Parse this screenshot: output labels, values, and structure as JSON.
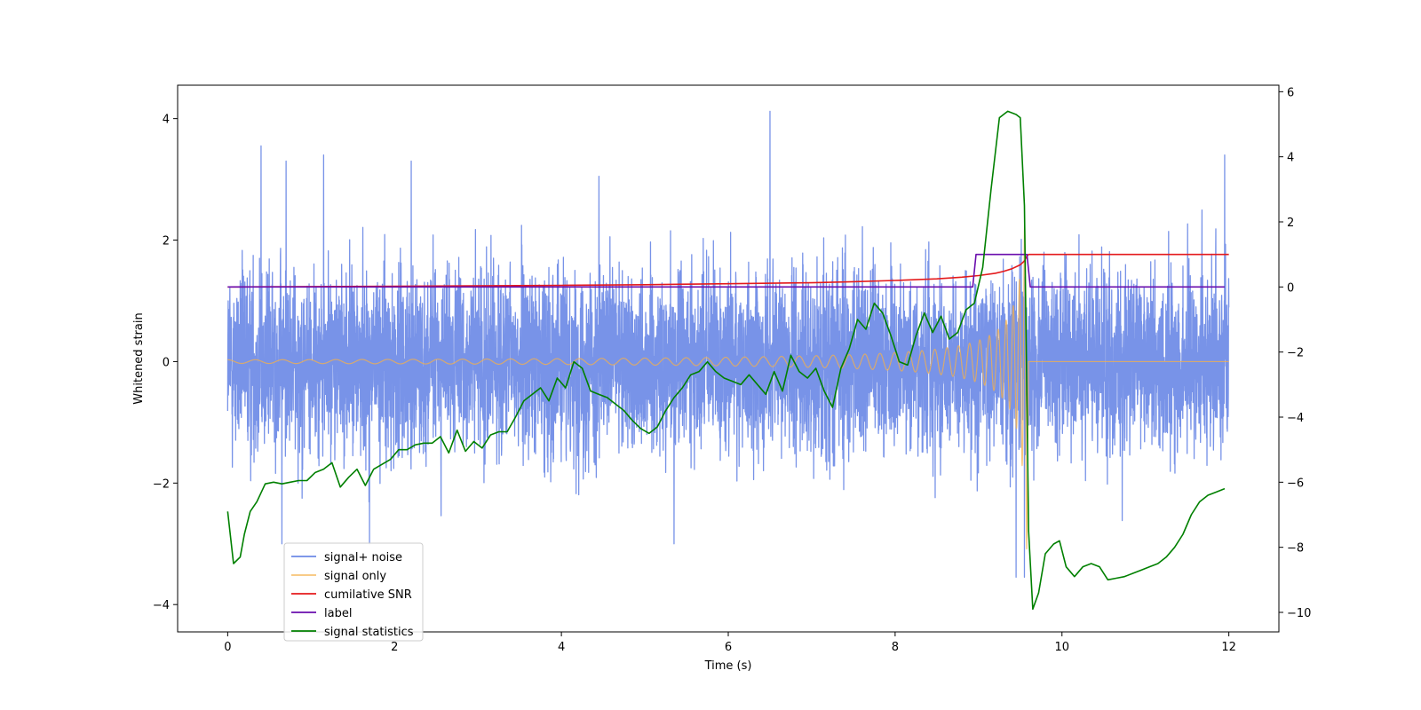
{
  "chart_data": {
    "type": "line",
    "title": "",
    "xlabel": "Time (s)",
    "ylabel": "Whitened strain",
    "y2label": "",
    "xlim": [
      -0.6,
      12.6
    ],
    "ylim": [
      -4.45,
      4.55
    ],
    "y2lim": [
      -10.6,
      6.2
    ],
    "x_ticks": [
      0,
      2,
      4,
      6,
      8,
      10,
      12
    ],
    "y_ticks": [
      -4,
      -2,
      0,
      2,
      4
    ],
    "y2_ticks": [
      -10,
      -8,
      -6,
      -4,
      -2,
      0,
      2,
      4,
      6
    ],
    "grid": false,
    "legend_position": "lower-left",
    "series": [
      {
        "name": "signal+ noise",
        "color": "#6d8ae6",
        "axis": "left",
        "description_values": {
          "x_range": [
            0,
            12
          ],
          "typical_band": [
            -2.0,
            2.0
          ],
          "spike_points": [
            {
              "x": 0.4,
              "y": 3.55
            },
            {
              "x": 0.7,
              "y": 3.3
            },
            {
              "x": 1.15,
              "y": 3.4
            },
            {
              "x": 2.2,
              "y": 3.3
            },
            {
              "x": 4.45,
              "y": 3.05
            },
            {
              "x": 6.5,
              "y": 4.12
            },
            {
              "x": 9.55,
              "y": 4.18
            },
            {
              "x": 11.95,
              "y": 3.4
            },
            {
              "x": 0.65,
              "y": -3.0
            },
            {
              "x": 1.7,
              "y": -3.0
            },
            {
              "x": 5.35,
              "y": -3.0
            },
            {
              "x": 9.45,
              "y": -3.55
            },
            {
              "x": 9.55,
              "y": -3.55
            }
          ]
        }
      },
      {
        "name": "signal only",
        "color": "#f5b04a",
        "axis": "left",
        "chirp": {
          "start_x": 0,
          "end_x": 9.58,
          "initial_amplitude": 0.03,
          "peak_amplitude": 3.1,
          "after_merger_value": 0
        }
      },
      {
        "name": "cumilative SNR",
        "color": "#e41a1c",
        "axis": "right",
        "x": [
          0,
          2,
          4,
          5,
          6,
          7,
          7.5,
          8,
          8.5,
          8.8,
          9.0,
          9.2,
          9.3,
          9.4,
          9.5,
          9.55,
          9.58,
          9.6,
          10,
          12
        ],
        "y": [
          0,
          0.02,
          0.05,
          0.07,
          0.1,
          0.13,
          0.16,
          0.2,
          0.25,
          0.3,
          0.35,
          0.42,
          0.48,
          0.56,
          0.68,
          0.8,
          0.95,
          1.0,
          1.0,
          1.0
        ]
      },
      {
        "name": "label",
        "color": "#6a0dad",
        "axis": "right",
        "x": [
          0,
          8.93,
          8.97,
          9.58,
          9.62,
          11.95
        ],
        "y": [
          0,
          0,
          1,
          1,
          0,
          0
        ]
      },
      {
        "name": "signal statistics",
        "color": "#008000",
        "axis": "right",
        "x": [
          0,
          0.07,
          0.15,
          0.2,
          0.27,
          0.35,
          0.45,
          0.55,
          0.65,
          0.75,
          0.85,
          0.95,
          1.05,
          1.15,
          1.25,
          1.35,
          1.45,
          1.55,
          1.65,
          1.75,
          1.85,
          1.95,
          2.05,
          2.15,
          2.25,
          2.35,
          2.45,
          2.55,
          2.65,
          2.75,
          2.85,
          2.95,
          3.05,
          3.15,
          3.25,
          3.35,
          3.45,
          3.55,
          3.65,
          3.75,
          3.85,
          3.95,
          4.05,
          4.15,
          4.25,
          4.35,
          4.45,
          4.55,
          4.65,
          4.75,
          4.85,
          4.95,
          5.05,
          5.15,
          5.25,
          5.35,
          5.45,
          5.55,
          5.65,
          5.75,
          5.85,
          5.95,
          6.05,
          6.15,
          6.25,
          6.35,
          6.45,
          6.55,
          6.65,
          6.75,
          6.85,
          6.95,
          7.05,
          7.15,
          7.25,
          7.35,
          7.45,
          7.55,
          7.65,
          7.75,
          7.85,
          7.95,
          8.05,
          8.15,
          8.25,
          8.35,
          8.45,
          8.55,
          8.65,
          8.75,
          8.85,
          8.95,
          9.05,
          9.15,
          9.25,
          9.35,
          9.45,
          9.5,
          9.55,
          9.6,
          9.65,
          9.72,
          9.8,
          9.9,
          9.97,
          10.05,
          10.15,
          10.25,
          10.35,
          10.45,
          10.55,
          10.65,
          10.75,
          10.85,
          10.95,
          11.05,
          11.15,
          11.25,
          11.35,
          11.45,
          11.55,
          11.65,
          11.75,
          11.85,
          11.95
        ],
        "y": [
          -6.9,
          -8.5,
          -8.3,
          -7.6,
          -6.9,
          -6.6,
          -6.05,
          -6.0,
          -6.05,
          -6.0,
          -5.95,
          -5.95,
          -5.7,
          -5.6,
          -5.4,
          -6.15,
          -5.85,
          -5.6,
          -6.1,
          -5.6,
          -5.45,
          -5.3,
          -5.0,
          -5.0,
          -4.85,
          -4.8,
          -4.8,
          -4.6,
          -5.1,
          -4.4,
          -5.05,
          -4.75,
          -4.95,
          -4.55,
          -4.45,
          -4.45,
          -4.0,
          -3.5,
          -3.3,
          -3.1,
          -3.5,
          -2.8,
          -3.1,
          -2.3,
          -2.5,
          -3.2,
          -3.3,
          -3.4,
          -3.6,
          -3.8,
          -4.1,
          -4.35,
          -4.5,
          -4.3,
          -3.8,
          -3.4,
          -3.1,
          -2.7,
          -2.6,
          -2.3,
          -2.6,
          -2.8,
          -2.9,
          -3.0,
          -2.7,
          -3.0,
          -3.3,
          -2.6,
          -3.2,
          -2.1,
          -2.6,
          -2.8,
          -2.5,
          -3.2,
          -3.7,
          -2.5,
          -1.9,
          -1.0,
          -1.3,
          -0.5,
          -0.8,
          -1.5,
          -2.3,
          -2.4,
          -1.5,
          -0.8,
          -1.4,
          -0.9,
          -1.6,
          -1.4,
          -0.7,
          -0.5,
          0.6,
          3.0,
          5.2,
          5.4,
          5.3,
          5.2,
          2.5,
          -7.5,
          -9.9,
          -9.4,
          -8.2,
          -7.9,
          -7.8,
          -8.6,
          -8.9,
          -8.6,
          -8.5,
          -8.6,
          -9.0,
          -8.95,
          -8.9,
          -8.8,
          -8.7,
          -8.6,
          -8.5,
          -8.3,
          -8.0,
          -7.6,
          -7.0,
          -6.6,
          -6.4,
          -6.3,
          -6.2
        ]
      }
    ]
  }
}
